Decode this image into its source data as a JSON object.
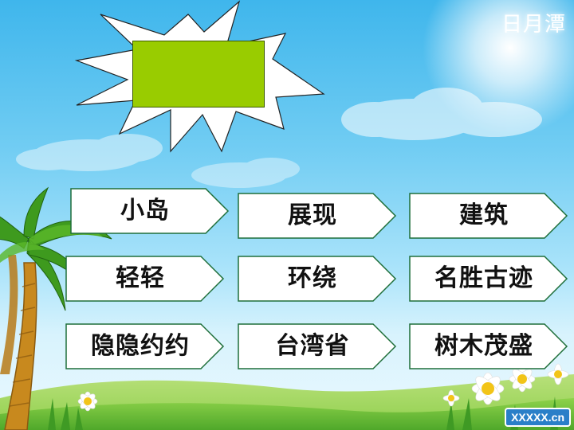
{
  "slide": {
    "corner_title": "日月潭"
  },
  "words": [
    "小岛",
    "展现",
    "建筑",
    "轻轻",
    "环绕",
    "名胜古迹",
    "隐隐约约",
    "台湾省",
    "树木茂盛"
  ],
  "watermark": "XXXXX.cn",
  "colors": {
    "sky_top": "#3fb6ec",
    "box_fill": "#ffffff",
    "box_stroke": "#1f6f3a",
    "green_panel": "#99cc00",
    "ground": "#6cc04a",
    "palm_leaf": "#3e9a1e",
    "palm_trunk": "#c8891e"
  }
}
